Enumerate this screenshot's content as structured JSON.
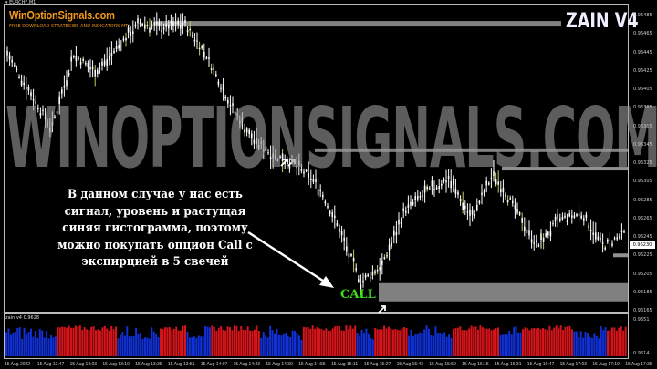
{
  "window": {
    "symbol": "EURCHF,M1"
  },
  "branding": {
    "title": "WinOptionSignals.com",
    "subtitle": "FREE DOWNLOAD STRATEGIES AND INDICATORS MT4",
    "indicator_name": "ZAIN V4",
    "watermark": "WINOPTIONSIGNALS.COM"
  },
  "annotation": {
    "text": "В данном случае у нас есть сигнал, уровень и растущая синяя гистограмма, поэтому можно покупать опцион Call с экспирцией в 5 свечей",
    "signal": "CALL",
    "signal_color": "#3ee018"
  },
  "price_axis": {
    "labels": [
      "0.96485",
      "0.96465",
      "0.96445",
      "0.96425",
      "0.96405",
      "0.96385",
      "0.96365",
      "0.96345",
      "0.96325",
      "0.96305",
      "0.96285",
      "0.96265",
      "0.96245",
      "0.96225",
      "0.96205",
      "0.96185",
      "0.96165"
    ],
    "current": "0.96230"
  },
  "indicator": {
    "label": "zain v4 0.9628",
    "axis_top": "0.9651",
    "axis_bottom": "0.9614",
    "up_color": "#1030d8",
    "down_color": "#d8141a"
  },
  "time_axis": [
    "15 Aug 2022",
    "15 Aug 12:47",
    "15 Aug 13:03",
    "15 Aug 13:19",
    "15 Aug 13:35",
    "15 Aug 13:51",
    "15 Aug 14:07",
    "15 Aug 14:23",
    "15 Aug 14:39",
    "15 Aug 14:55",
    "15 Aug 15:11",
    "15 Aug 15:27",
    "15 Aug 15:43",
    "15 Aug 15:59",
    "15 Aug 16:15",
    "15 Aug 16:31",
    "15 Aug 16:47",
    "15 Aug 17:03",
    "15 Aug 17:19",
    "15 Aug 17:35"
  ],
  "chart_data": {
    "type": "candlestick",
    "price_path": [
      0.96443,
      0.96403,
      0.96363,
      0.96443,
      0.96423,
      0.96452,
      0.96477,
      0.96472,
      0.96477,
      0.96443,
      0.96393,
      0.96354,
      0.96334,
      0.96324,
      0.96304,
      0.96255,
      0.96196,
      0.96215,
      0.96275,
      0.96294,
      0.96309,
      0.96265,
      0.96314,
      0.96275,
      0.96235,
      0.96265,
      0.9627,
      0.96235,
      0.9625
    ],
    "levels": [
      0.96476,
      0.96339,
      0.96319,
      0.96185,
      0.96225
    ],
    "ylim": [
      0.96165,
      0.96485
    ]
  }
}
